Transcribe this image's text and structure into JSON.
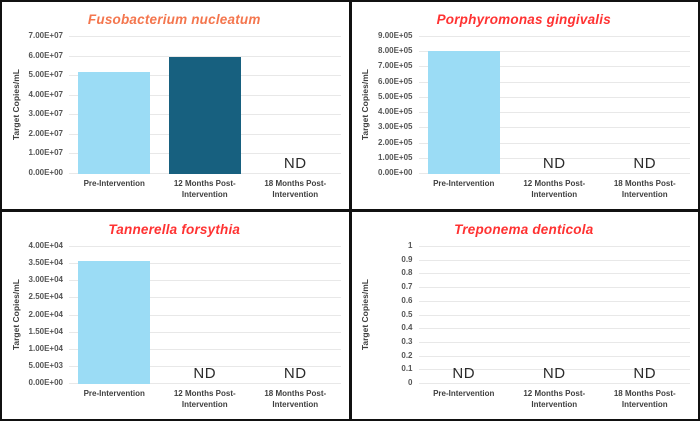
{
  "page": {
    "nd_label": "ND",
    "y_axis_title": "Target Copies/mL",
    "colors": {
      "bar_light_blue": "#9BDCF5",
      "bar_dark_blue": "#17607F",
      "title_orange": "#F4764E",
      "title_red": "#FF3232",
      "gridline": "#E8E8E8",
      "nd_text": "#2B2B2B",
      "panel_border": "#111111"
    }
  },
  "chart_data": [
    {
      "id": "fusobacterium-nucleatum",
      "type": "bar",
      "title": "Fusobacterium nucleatum",
      "title_color": "#F4764E",
      "ylabel": "Target Copies/mL",
      "xlabel": "",
      "categories": [
        "Pre-Intervention",
        "12 Months Post-Intervention",
        "18 Months Post-Intervention"
      ],
      "values": [
        52000000,
        60000000,
        "ND"
      ],
      "bar_colors": [
        "#9BDCF5",
        "#17607F",
        null
      ],
      "ticks": [
        "7.00E+07",
        "6.00E+07",
        "5.00E+07",
        "4.00E+07",
        "3.00E+07",
        "2.00E+07",
        "1.00E+07",
        "0.00E+00"
      ],
      "ylim": [
        0,
        70000000
      ],
      "grid": true,
      "legend": "none"
    },
    {
      "id": "porphyromonas-gingivalis",
      "type": "bar",
      "title": "Porphyromonas gingivalis",
      "title_color": "#FF3232",
      "ylabel": "Target Copies/mL",
      "xlabel": "",
      "categories": [
        "Pre-Intervention",
        "12 Months Post-Intervention",
        "18 Months Post-Intervention"
      ],
      "values": [
        810000,
        "ND",
        "ND"
      ],
      "bar_colors": [
        "#9BDCF5",
        null,
        null
      ],
      "ticks": [
        "9.00E+05",
        "8.00E+05",
        "7.00E+05",
        "6.00E+05",
        "5.00E+05",
        "4.00E+05",
        "3.00E+05",
        "2.00E+05",
        "1.00E+05",
        "0.00E+00"
      ],
      "ylim": [
        0,
        900000
      ],
      "grid": true,
      "legend": "none"
    },
    {
      "id": "tannerella-forsythia",
      "type": "bar",
      "title": "Tannerella forsythia",
      "title_color": "#FF3232",
      "ylabel": "Target Copies/mL",
      "xlabel": "",
      "categories": [
        "Pre-Intervention",
        "12 Months Post-Intervention",
        "18 Months Post-Intervention"
      ],
      "values": [
        36000,
        "ND",
        "ND"
      ],
      "bar_colors": [
        "#9BDCF5",
        null,
        null
      ],
      "ticks": [
        "4.00E+04",
        "3.50E+04",
        "3.00E+04",
        "2.50E+04",
        "2.00E+04",
        "1.50E+04",
        "1.00E+04",
        "5.00E+03",
        "0.00E+00"
      ],
      "ylim": [
        0,
        40000
      ],
      "grid": true,
      "legend": "none"
    },
    {
      "id": "treponema-denticola",
      "type": "bar",
      "title": "Treponema denticola",
      "title_color": "#FF3232",
      "ylabel": "Target Copies/mL",
      "xlabel": "",
      "categories": [
        "Pre-Intervention",
        "12 Months Post-Intervention",
        "18 Months Post-Intervention"
      ],
      "values": [
        "ND",
        "ND",
        "ND"
      ],
      "bar_colors": [
        null,
        null,
        null
      ],
      "ticks": [
        "1",
        "0.9",
        "0.8",
        "0.7",
        "0.6",
        "0.5",
        "0.4",
        "0.3",
        "0.2",
        "0.1",
        "0"
      ],
      "ylim": [
        0,
        1
      ],
      "grid": true,
      "legend": "none"
    }
  ]
}
